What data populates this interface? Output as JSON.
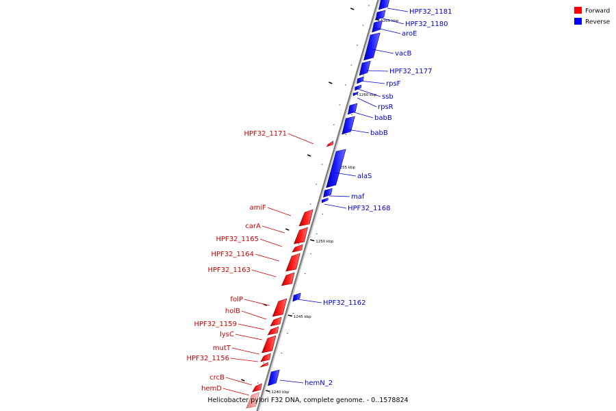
{
  "caption": "Helicobacter pylori F32 DNA, complete genome. - 0..1578824",
  "legend": [
    {
      "label": "Forward",
      "color": "#ff0000"
    },
    {
      "label": "Reverse",
      "color": "#0000ff"
    }
  ],
  "ticks": [
    "1265 kbp",
    "1260 kbp",
    "1255 kbp",
    "1250 kbp",
    "1245 kbp",
    "1240 kbp"
  ],
  "reverse_genes": [
    "HPF32_1181",
    "HPF32_1180",
    "aroE",
    "vacB",
    "HPF32_1177",
    "rpsF",
    "ssb",
    "rpsR",
    "babB",
    "babB",
    "alaS",
    "maf",
    "HPF32_1168",
    "HPF32_1162",
    "hemN_2"
  ],
  "forward_genes": [
    "HPF32_1171",
    "amiF",
    "carA",
    "HPF32_1165",
    "HPF32_1164",
    "HPF32_1163",
    "folP",
    "holB",
    "HPF32_1159",
    "lysC",
    "mutT",
    "HPF32_1156",
    "crcB",
    "hemD"
  ],
  "colors": {
    "forward": "#ff0000",
    "forward_pale": "#f4a6a6",
    "reverse": "#0000ff",
    "forward_label": "#cc0000",
    "reverse_label": "#0000cc",
    "backbone": "#888888"
  }
}
